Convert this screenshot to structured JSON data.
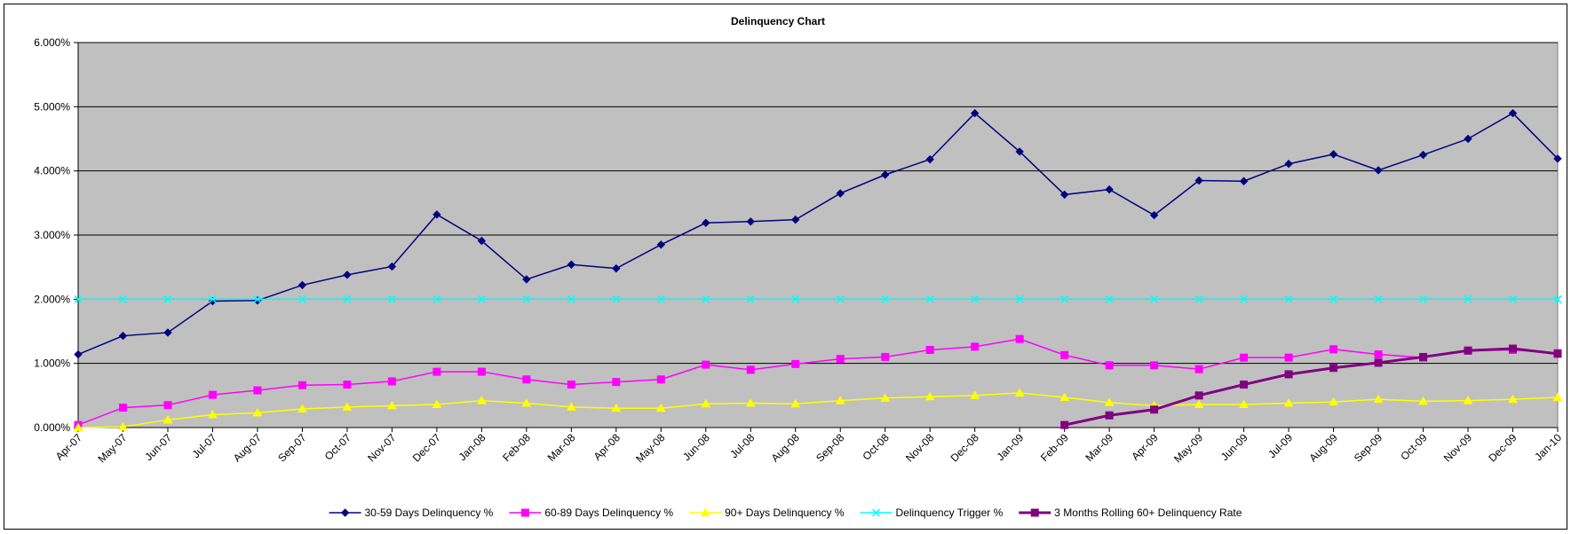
{
  "chart_data": {
    "type": "line",
    "title": "Delinquency  Chart",
    "xlabel": "",
    "ylabel": "",
    "ylim": [
      0,
      0.06
    ],
    "y_tick_labels": [
      "0.000%",
      "1.000%",
      "2.000%",
      "3.000%",
      "4.000%",
      "5.000%",
      "6.000%"
    ],
    "grid": true,
    "legend_position": "bottom",
    "plot_background": "#c0c0c0",
    "categories": [
      "Apr-07",
      "May-07",
      "Jun-07",
      "Jul-07",
      "Aug-07",
      "Sep-07",
      "Oct-07",
      "Nov-07",
      "Dec-07",
      "Jan-08",
      "Feb-08",
      "Mar-08",
      "Apr-08",
      "May-08",
      "Jun-08",
      "Jul-08",
      "Aug-08",
      "Sep-08",
      "Oct-08",
      "Nov-08",
      "Dec-08",
      "Jan-09",
      "Feb-09",
      "Mar-09",
      "Apr-09",
      "May-09",
      "Jun-09",
      "Jul-09",
      "Aug-09",
      "Sep-09",
      "Oct-09",
      "Nov-09",
      "Dec-09",
      "Jan-10"
    ],
    "series": [
      {
        "name": "30-59 Days Delinquency %",
        "color": "#000080",
        "marker": "diamond",
        "values": [
          0.0114,
          0.0143,
          0.0148,
          0.0197,
          0.0198,
          0.0222,
          0.0238,
          0.0251,
          0.0332,
          0.0291,
          0.0231,
          0.0254,
          0.0248,
          0.0285,
          0.0319,
          0.0321,
          0.0324,
          0.0365,
          0.0394,
          0.0418,
          0.049,
          0.043,
          0.0363,
          0.0371,
          0.0331,
          0.0385,
          0.0384,
          0.0411,
          0.0426,
          0.0401,
          0.0425,
          0.045,
          0.049,
          0.0419
        ]
      },
      {
        "name": "60-89 Days Delinquency %",
        "color": "#ff00ff",
        "marker": "square",
        "values": [
          0.0004,
          0.0031,
          0.0035,
          0.0051,
          0.0058,
          0.0066,
          0.0067,
          0.0072,
          0.0087,
          0.0087,
          0.0075,
          0.0067,
          0.0071,
          0.0075,
          0.0098,
          0.009,
          0.0099,
          0.0107,
          0.011,
          0.0121,
          0.0126,
          0.0138,
          0.0113,
          0.0097,
          0.0097,
          0.0091,
          0.0109,
          0.0109,
          0.0122,
          0.0114,
          0.0109,
          0.012,
          0.0121,
          0.0116
        ]
      },
      {
        "name": "90+ Days Delinquency %",
        "color": "#ffff00",
        "marker": "triangle",
        "values": [
          0.0,
          0.0001,
          0.0012,
          0.002,
          0.0023,
          0.0029,
          0.0032,
          0.0034,
          0.0036,
          0.0042,
          0.0038,
          0.0032,
          0.003,
          0.003,
          0.0037,
          0.0038,
          0.0037,
          0.0042,
          0.0046,
          0.0048,
          0.005,
          0.0054,
          0.0047,
          0.0039,
          0.0034,
          0.0036,
          0.0036,
          0.0038,
          0.004,
          0.0044,
          0.0041,
          0.0042,
          0.0044,
          0.0047
        ]
      },
      {
        "name": "Delinquency Trigger %",
        "color": "#00ffff",
        "marker": "x",
        "values": [
          0.02,
          0.02,
          0.02,
          0.02,
          0.02,
          0.02,
          0.02,
          0.02,
          0.02,
          0.02,
          0.02,
          0.02,
          0.02,
          0.02,
          0.02,
          0.02,
          0.02,
          0.02,
          0.02,
          0.02,
          0.02,
          0.02,
          0.02,
          0.02,
          0.02,
          0.02,
          0.02,
          0.02,
          0.02,
          0.02,
          0.02,
          0.02,
          0.02,
          0.02
        ]
      },
      {
        "name": "3 Months Rolling 60+ Delinquency Rate",
        "color": "#800080",
        "marker": "square",
        "values": [
          null,
          null,
          null,
          null,
          null,
          null,
          null,
          null,
          null,
          null,
          null,
          null,
          null,
          null,
          null,
          null,
          null,
          null,
          null,
          null,
          null,
          null,
          0.0004,
          0.0019,
          0.0028,
          0.005,
          0.0067,
          0.0083,
          0.0093,
          0.0101,
          0.011,
          0.012,
          0.0123,
          0.0115
        ]
      }
    ]
  }
}
